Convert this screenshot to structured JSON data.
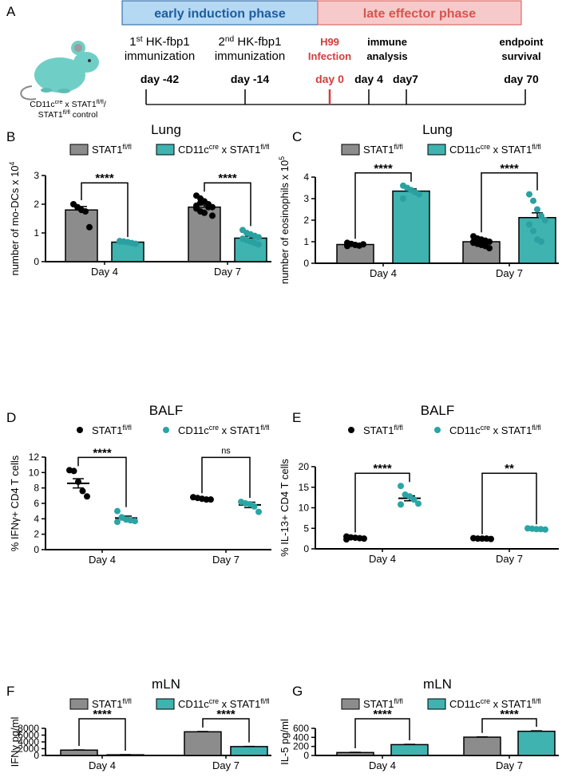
{
  "timeline": {
    "panel_label": "A",
    "phases": [
      {
        "label": "early induction phase",
        "color": "#b5d8f3",
        "text_color": "#1d5c9e"
      },
      {
        "label": "late effector phase",
        "color": "#f6caca",
        "text_color": "#d9534f"
      }
    ],
    "mouse_caption": [
      [
        "CD11c",
        "cre",
        " x STAT1",
        "fl/fl",
        "/"
      ],
      [
        "STAT1",
        "fl/fl",
        " control"
      ]
    ],
    "events": [
      {
        "lines": [
          [
            "1",
            "st",
            " HK-fbp1"
          ],
          [
            "immunization"
          ]
        ],
        "days": [
          "day -42"
        ],
        "color": "#000000"
      },
      {
        "lines": [
          [
            "2",
            "nd",
            " HK-fbp1"
          ],
          [
            "immunization"
          ]
        ],
        "days": [
          "day -14"
        ],
        "color": "#000000"
      },
      {
        "lines": [
          [
            "H99"
          ],
          [
            "Infection"
          ]
        ],
        "days": [
          "day 0"
        ],
        "color": "#d43c3c"
      },
      {
        "lines": [
          [
            "immune"
          ],
          [
            "analysis"
          ]
        ],
        "days": [
          "day 4",
          "day7"
        ],
        "color": "#000000"
      },
      {
        "lines": [
          [
            "endpoint"
          ],
          [
            "survival"
          ]
        ],
        "days": [
          "day 70"
        ],
        "color": "#000000"
      }
    ]
  },
  "chart_data": [
    {
      "type": "bar",
      "panel_label": "B",
      "title": "Lung",
      "y_label": [
        "number of mo-DCs x 10",
        "4"
      ],
      "categories": [
        "Day 4",
        "Day 7"
      ],
      "ylim": [
        0,
        3
      ],
      "yticks": [
        0,
        1,
        2,
        3
      ],
      "significance": [
        "****",
        "****"
      ],
      "series": [
        {
          "name": [
            "STAT1",
            "fl/fl"
          ],
          "color": "#8c8c8c",
          "point_color": "#000000",
          "values": [
            1.8,
            1.9
          ],
          "errors": [
            0.12,
            0.07
          ],
          "points": [
            [
              2.0,
              1.9,
              1.8,
              1.75,
              1.2
            ],
            [
              2.3,
              2.2,
              2.1,
              2.0,
              1.9,
              1.85,
              1.75,
              1.7,
              1.9,
              1.6,
              1.95,
              2.05
            ]
          ]
        },
        {
          "name": [
            "CD11c",
            "cre",
            " x STAT1",
            "fl/fl"
          ],
          "color": "#3fb3b0",
          "point_color": "#2aa0a0",
          "values": [
            0.68,
            0.82
          ],
          "errors": [
            0.04,
            0.07
          ],
          "points": [
            [
              0.72,
              0.7,
              0.68,
              0.65,
              0.62,
              0.7
            ],
            [
              1.1,
              1.0,
              0.95,
              0.9,
              0.85,
              0.8,
              0.75,
              0.7,
              0.65,
              0.6,
              0.8
            ]
          ]
        }
      ]
    },
    {
      "type": "bar",
      "panel_label": "C",
      "title": "Lung",
      "y_label": [
        "number of eosinophils x 10",
        "5"
      ],
      "categories": [
        "Day 4",
        "Day 7"
      ],
      "ylim": [
        0,
        4
      ],
      "yticks": [
        0,
        1,
        2,
        3,
        4
      ],
      "significance": [
        "****",
        "****"
      ],
      "series": [
        {
          "name": [
            "STAT1",
            "fl/fl"
          ],
          "color": "#8c8c8c",
          "point_color": "#000000",
          "values": [
            0.87,
            1.0
          ],
          "errors": [
            0.04,
            0.06
          ],
          "points": [
            [
              0.95,
              0.9,
              0.85,
              0.82,
              0.88,
              0.8
            ],
            [
              1.25,
              1.15,
              1.1,
              1.05,
              1.0,
              0.95,
              0.9,
              0.85,
              0.8,
              0.7,
              1.0
            ]
          ]
        },
        {
          "name": [
            "CD11c",
            "cre",
            " x STAT1",
            "fl/fl"
          ],
          "color": "#3fb3b0",
          "point_color": "#2aa0a0",
          "values": [
            3.35,
            2.12
          ],
          "errors": [
            0.1,
            0.22
          ],
          "points": [
            [
              3.6,
              3.5,
              3.4,
              3.3,
              3.2,
              3.0
            ],
            [
              3.2,
              2.9,
              2.5,
              2.2,
              2.0,
              1.8,
              1.5,
              1.1,
              1.0
            ]
          ]
        }
      ]
    },
    {
      "type": "strip",
      "panel_label": "D",
      "title": "BALF",
      "y_label": [
        "% IFNγ+ CD4 T cells"
      ],
      "categories": [
        "Day 4",
        "Day 7"
      ],
      "ylim": [
        0,
        12
      ],
      "yticks": [
        0,
        2,
        4,
        6,
        8,
        10,
        12
      ],
      "significance": [
        "****",
        "ns"
      ],
      "series": [
        {
          "name": [
            "STAT1",
            "fl/fl"
          ],
          "color": "#000000",
          "values": [
            8.6,
            6.6
          ],
          "errors": [
            0.6,
            0.1
          ],
          "points": [
            [
              10.3,
              10.2,
              8.8,
              7.6,
              6.9
            ],
            [
              6.8,
              6.7,
              6.6,
              6.5,
              6.5
            ]
          ]
        },
        {
          "name": [
            "CD11c",
            "cre",
            " x STAT1",
            "fl/fl"
          ],
          "color": "#2aa5a5",
          "values": [
            4.1,
            5.8
          ],
          "errors": [
            0.25,
            0.35
          ],
          "points": [
            [
              5.0,
              4.2,
              3.9,
              3.8,
              3.7,
              3.6
            ],
            [
              6.2,
              6.0,
              5.9,
              5.6,
              4.9
            ]
          ]
        }
      ]
    },
    {
      "type": "strip",
      "panel_label": "E",
      "title": "BALF",
      "y_label": [
        "% IL-13+ CD4 T cells"
      ],
      "categories": [
        "Day 4",
        "Day 7"
      ],
      "ylim": [
        0,
        20
      ],
      "yticks": [
        0,
        5,
        10,
        15,
        20
      ],
      "significance": [
        "****",
        "**"
      ],
      "series": [
        {
          "name": [
            "STAT1",
            "fl/fl"
          ],
          "color": "#000000",
          "values": [
            2.7,
            2.5
          ],
          "errors": [
            0.15,
            0.05
          ],
          "points": [
            [
              3.0,
              2.8,
              2.7,
              2.6,
              2.5,
              2.3
            ],
            [
              2.6,
              2.5,
              2.5,
              2.5,
              2.4
            ]
          ]
        },
        {
          "name": [
            "CD11c",
            "cre",
            " x STAT1",
            "fl/fl"
          ],
          "color": "#2aa5a5",
          "values": [
            12.3,
            4.8
          ],
          "errors": [
            0.6,
            0.15
          ],
          "points": [
            [
              15.3,
              13.2,
              12.8,
              12.0,
              11.0,
              10.8
            ],
            [
              5.0,
              4.9,
              4.8,
              4.8,
              4.7
            ]
          ]
        }
      ]
    },
    {
      "type": "bar",
      "panel_label": "F",
      "title": "mLN",
      "y_label": [
        "IFNγ pg/ml"
      ],
      "categories": [
        "Day 4",
        "Day 7"
      ],
      "ylim": [
        0,
        8000
      ],
      "yticks": [
        0,
        2000,
        4000,
        6000,
        8000
      ],
      "significance": [
        "****",
        "****"
      ],
      "series": [
        {
          "name": [
            "STAT1",
            "fl/fl"
          ],
          "color": "#8c8c8c",
          "values": [
            1580,
            6980
          ],
          "errors": [
            60,
            80
          ]
        },
        {
          "name": [
            "CD11c",
            "cre",
            " x STAT1",
            "fl/fl"
          ],
          "color": "#3fb3b0",
          "values": [
            200,
            2620
          ],
          "errors": [
            40,
            50
          ]
        }
      ]
    },
    {
      "type": "bar",
      "panel_label": "G",
      "title": "mLN",
      "y_label": [
        "IL-5 pg/ml"
      ],
      "categories": [
        "Day 4",
        "Day 7"
      ],
      "ylim": [
        0,
        600
      ],
      "yticks": [
        0,
        200,
        400,
        600
      ],
      "significance": [
        "****",
        "****"
      ],
      "series": [
        {
          "name": [
            "STAT1",
            "fl/fl"
          ],
          "color": "#8c8c8c",
          "values": [
            65,
            405
          ],
          "errors": [
            5,
            6
          ]
        },
        {
          "name": [
            "CD11c",
            "cre",
            " x STAT1",
            "fl/fl"
          ],
          "color": "#3fb3b0",
          "values": [
            240,
            535
          ],
          "errors": [
            6,
            10
          ]
        }
      ]
    }
  ]
}
